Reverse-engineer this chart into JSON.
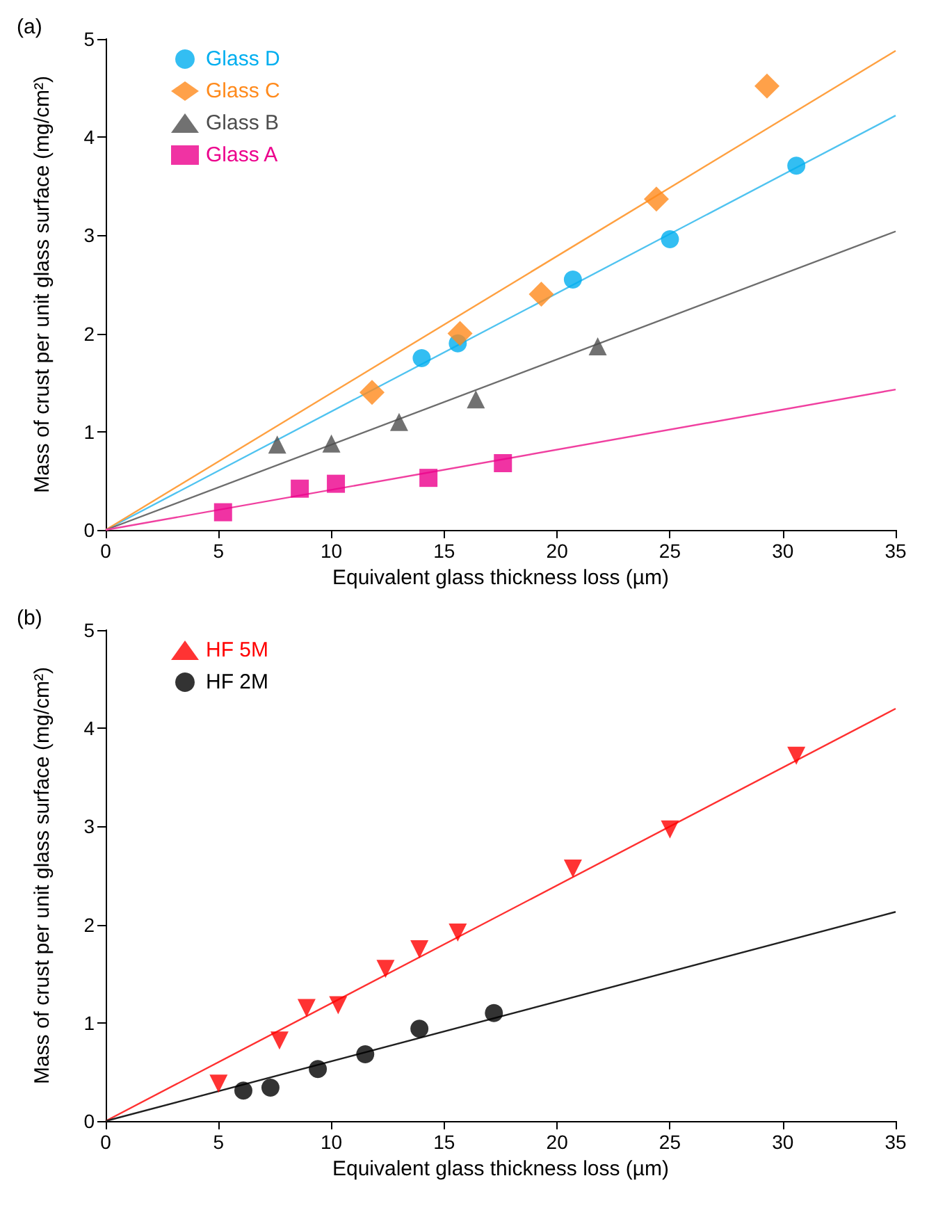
{
  "chart_data": [
    {
      "type": "scatter",
      "annotations": [
        "(a)"
      ],
      "xlabel": "Equivalent glass thickness loss (µm)",
      "ylabel": "Mass of crust per unit glass surface (mg/cm²)",
      "xlim": [
        0,
        35
      ],
      "ylim": [
        0,
        5
      ],
      "xticks": [
        0,
        5,
        10,
        15,
        20,
        25,
        30,
        35
      ],
      "yticks": [
        0,
        1,
        2,
        3,
        4,
        5
      ],
      "grid": false,
      "legend": "top left",
      "series": [
        {
          "name": "Glass D",
          "color": "#00aeef",
          "marker": "circle",
          "x": [
            14,
            15.6,
            20.7,
            25,
            30.6
          ],
          "values": [
            1.75,
            1.9,
            2.55,
            2.96,
            3.71
          ]
        },
        {
          "name": "Glass C",
          "color": "#ff8a1c",
          "marker": "diamond",
          "x": [
            11.8,
            15.7,
            19.3,
            24.4,
            29.3
          ],
          "values": [
            1.4,
            2.0,
            2.4,
            3.37,
            4.52
          ]
        },
        {
          "name": "Glass B",
          "color": "#4d4d4d",
          "marker": "triangle",
          "x": [
            7.6,
            10,
            13,
            16.4,
            21.8
          ],
          "values": [
            0.87,
            0.88,
            1.1,
            1.33,
            1.87
          ]
        },
        {
          "name": "Glass A",
          "color": "#ec008c",
          "marker": "square",
          "x": [
            5.2,
            8.6,
            10.2,
            14.3,
            17.6
          ],
          "values": [
            0.18,
            0.42,
            0.47,
            0.53,
            0.68
          ]
        },
        {
          "type": "line",
          "color": "#4fc3f0",
          "marker": "none",
          "x": [
            0,
            35
          ],
          "values": [
            0,
            4.22
          ]
        },
        {
          "type": "line",
          "color": "#ffa040",
          "marker": "none",
          "x": [
            0,
            35
          ],
          "values": [
            0,
            4.88
          ]
        },
        {
          "type": "line",
          "color": "#6d6d6d",
          "marker": "none",
          "x": [
            0,
            35
          ],
          "values": [
            0,
            3.04
          ]
        },
        {
          "type": "line",
          "color": "#f040a0",
          "marker": "none",
          "x": [
            0,
            35
          ],
          "values": [
            0,
            1.43
          ]
        }
      ]
    },
    {
      "type": "scatter",
      "annotations": [
        "(b)"
      ],
      "xlabel": "Equivalent glass thickness loss (µm)",
      "ylabel": "Mass of crust per unit glass surface (mg/cm²)",
      "xlim": [
        0,
        35
      ],
      "ylim": [
        0,
        5
      ],
      "xticks": [
        0,
        5,
        10,
        15,
        20,
        25,
        30,
        35
      ],
      "yticks": [
        0,
        1,
        2,
        3,
        4,
        5
      ],
      "grid": false,
      "legend": "top left",
      "series": [
        {
          "name": "HF 5M",
          "color": "#ff0000",
          "marker": "triangle-down",
          "x": [
            5,
            7.7,
            8.9,
            10.3,
            12.4,
            13.9,
            15.6,
            20.7,
            25,
            30.6
          ],
          "values": [
            0.38,
            0.82,
            1.15,
            1.18,
            1.55,
            1.75,
            1.92,
            2.57,
            2.97,
            3.72
          ]
        },
        {
          "name": "HF 2M",
          "color": "#000000",
          "marker": "circle",
          "x": [
            6.1,
            7.3,
            9.4,
            11.5,
            13.9,
            17.2
          ],
          "values": [
            0.31,
            0.34,
            0.53,
            0.68,
            0.94,
            1.1
          ]
        },
        {
          "type": "line",
          "color": "#ff3030",
          "marker": "none",
          "x": [
            0,
            35
          ],
          "values": [
            0,
            4.2
          ]
        },
        {
          "type": "line",
          "color": "#202020",
          "marker": "none",
          "x": [
            0,
            35
          ],
          "values": [
            0,
            2.13
          ]
        }
      ]
    }
  ]
}
